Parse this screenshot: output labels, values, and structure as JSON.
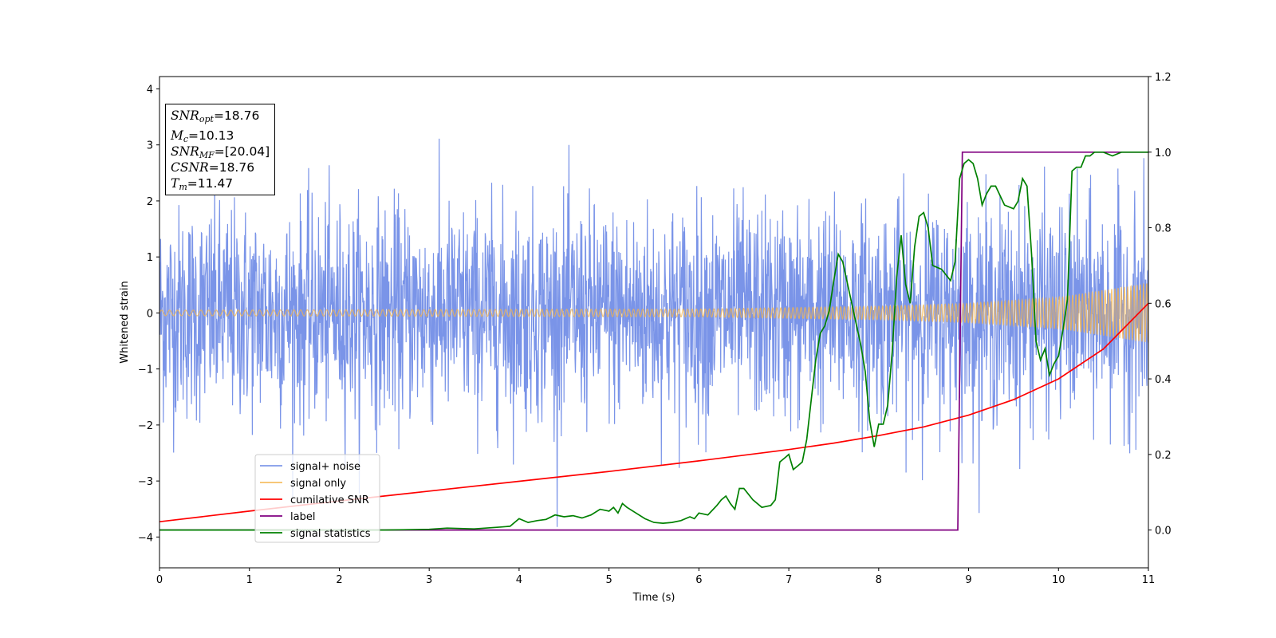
{
  "chart_data": {
    "type": "line",
    "xlabel": "Time (s)",
    "ylabel": "Whitened strain",
    "xlim": [
      0,
      11
    ],
    "ylim": [
      -4.55,
      4.22
    ],
    "y2lim": [
      -0.1,
      1.2
    ],
    "xticks": [
      "0",
      "1",
      "2",
      "3",
      "4",
      "5",
      "6",
      "7",
      "8",
      "9",
      "10",
      "11"
    ],
    "yticks": [
      "4",
      "3",
      "2",
      "1",
      "0",
      "−1",
      "−2",
      "−3",
      "−4"
    ],
    "y2ticks": [
      "1.2",
      "1.0",
      "0.8",
      "0.6",
      "0.4",
      "0.2",
      "0.0"
    ],
    "grid": false,
    "legend_position": "lower-left",
    "legend": [
      "signal+ noise",
      "signal only",
      "cumilative SNR",
      "label",
      "signal statistics"
    ],
    "annotation": {
      "snr_opt": {
        "base": "SNR",
        "sub": "opt",
        "value": "=18.76"
      },
      "mc": {
        "base": "M",
        "sub": "c",
        "value": "=10.13"
      },
      "snr_mf": {
        "base": "SNR",
        "sub": "MF",
        "value": "=[20.04]"
      },
      "csnr": {
        "base": "CSNR",
        "value": "=18.76"
      },
      "tm": {
        "base": "T",
        "sub": "m",
        "value": "=11.47"
      }
    },
    "series": [
      {
        "name": "signal+ noise",
        "axis": "left",
        "color": "#6b88e6",
        "kind": "noise",
        "std": 0.95,
        "max_abs": 3.85
      },
      {
        "name": "signal only",
        "axis": "left",
        "color": "#f5b44a",
        "kind": "chirp",
        "amplitude_at": [
          [
            0,
            0.05
          ],
          [
            6,
            0.07
          ],
          [
            8,
            0.12
          ],
          [
            9,
            0.17
          ],
          [
            10,
            0.28
          ],
          [
            11,
            0.53
          ]
        ]
      },
      {
        "name": "cumilative SNR",
        "axis": "right",
        "color": "#ff0000",
        "x": [
          0,
          1,
          2,
          3,
          4,
          5,
          6,
          7,
          7.5,
          8,
          8.5,
          9,
          9.5,
          10,
          10.5,
          11
        ],
        "y": [
          0.022,
          0.05,
          0.077,
          0.103,
          0.129,
          0.155,
          0.183,
          0.213,
          0.23,
          0.25,
          0.273,
          0.304,
          0.345,
          0.4,
          0.479,
          0.6
        ]
      },
      {
        "name": "label",
        "axis": "right",
        "color": "#800080",
        "x": [
          0,
          8.88,
          8.93,
          11
        ],
        "y": [
          0,
          0,
          1,
          1
        ]
      },
      {
        "name": "signal statistics",
        "axis": "right",
        "color": "#008000",
        "x": [
          0,
          1,
          2,
          2.5,
          3,
          3.2,
          3.5,
          3.8,
          3.9,
          4.0,
          4.1,
          4.2,
          4.3,
          4.4,
          4.5,
          4.6,
          4.7,
          4.8,
          4.9,
          5.0,
          5.05,
          5.1,
          5.15,
          5.2,
          5.3,
          5.4,
          5.5,
          5.6,
          5.7,
          5.8,
          5.9,
          5.95,
          6.0,
          6.1,
          6.2,
          6.25,
          6.3,
          6.35,
          6.4,
          6.45,
          6.5,
          6.6,
          6.7,
          6.8,
          6.85,
          6.9,
          6.95,
          7.0,
          7.05,
          7.1,
          7.15,
          7.2,
          7.3,
          7.35,
          7.4,
          7.45,
          7.5,
          7.55,
          7.6,
          7.7,
          7.8,
          7.85,
          7.9,
          7.95,
          8.0,
          8.05,
          8.1,
          8.15,
          8.2,
          8.25,
          8.3,
          8.35,
          8.4,
          8.45,
          8.5,
          8.55,
          8.6,
          8.7,
          8.8,
          8.85,
          8.9,
          8.95,
          9.0,
          9.05,
          9.1,
          9.15,
          9.2,
          9.25,
          9.3,
          9.4,
          9.5,
          9.55,
          9.6,
          9.65,
          9.7,
          9.75,
          9.8,
          9.85,
          9.9,
          9.95,
          10.0,
          10.05,
          10.1,
          10.15,
          10.2,
          10.25,
          10.3,
          10.35,
          10.4,
          10.5,
          10.6,
          10.7,
          10.8,
          11
        ],
        "y": [
          0,
          0,
          0,
          0,
          0.002,
          0.005,
          0.003,
          0.008,
          0.01,
          0.03,
          0.02,
          0.025,
          0.028,
          0.04,
          0.035,
          0.038,
          0.032,
          0.04,
          0.055,
          0.05,
          0.06,
          0.045,
          0.07,
          0.06,
          0.045,
          0.03,
          0.02,
          0.018,
          0.02,
          0.025,
          0.035,
          0.03,
          0.045,
          0.04,
          0.065,
          0.08,
          0.09,
          0.07,
          0.055,
          0.11,
          0.11,
          0.08,
          0.06,
          0.065,
          0.08,
          0.18,
          0.19,
          0.2,
          0.16,
          0.17,
          0.18,
          0.24,
          0.45,
          0.52,
          0.54,
          0.58,
          0.66,
          0.73,
          0.71,
          0.6,
          0.49,
          0.42,
          0.29,
          0.22,
          0.28,
          0.28,
          0.33,
          0.47,
          0.67,
          0.78,
          0.65,
          0.6,
          0.75,
          0.83,
          0.84,
          0.8,
          0.7,
          0.69,
          0.66,
          0.71,
          0.93,
          0.97,
          0.98,
          0.97,
          0.93,
          0.86,
          0.89,
          0.91,
          0.91,
          0.86,
          0.85,
          0.87,
          0.93,
          0.91,
          0.73,
          0.5,
          0.45,
          0.48,
          0.41,
          0.44,
          0.46,
          0.53,
          0.61,
          0.95,
          0.96,
          0.96,
          0.99,
          0.99,
          1.0,
          1.0,
          0.99,
          1.0,
          1.0,
          1.0
        ]
      }
    ]
  }
}
